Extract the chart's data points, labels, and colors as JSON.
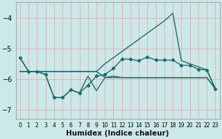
{
  "xlabel": "Humidex (Indice chaleur)",
  "bg_color": "#cce8e8",
  "grid_color": "#e8b0b0",
  "line_color": "#1a6b6b",
  "xlim": [
    -0.5,
    23.5
  ],
  "ylim": [
    -7.3,
    -3.5
  ],
  "yticks": [
    -7,
    -6,
    -5,
    -4
  ],
  "xticks": [
    0,
    1,
    2,
    3,
    4,
    5,
    6,
    7,
    8,
    9,
    10,
    11,
    12,
    13,
    14,
    15,
    16,
    17,
    18,
    19,
    20,
    21,
    22,
    23
  ],
  "line_upper_x": [
    0,
    1,
    2,
    3,
    4,
    5,
    6,
    7,
    8,
    9,
    10,
    11,
    12,
    13,
    14,
    15,
    16,
    17,
    18,
    19,
    20,
    21,
    22,
    23
  ],
  "line_upper_y": [
    -5.3,
    -5.75,
    -5.75,
    -5.75,
    -5.75,
    -5.75,
    -5.75,
    -5.75,
    -5.75,
    -5.75,
    -5.5,
    -5.3,
    -5.1,
    -4.9,
    -4.7,
    -4.5,
    -4.3,
    -4.1,
    -3.85,
    -5.4,
    -5.5,
    -5.6,
    -5.7,
    -6.3
  ],
  "line_mid_x": [
    0,
    1,
    2,
    3,
    4,
    5,
    6,
    7,
    8,
    9,
    10,
    11,
    12,
    13,
    14,
    15,
    16,
    17,
    18,
    19,
    20,
    21,
    22,
    23
  ],
  "line_mid_y": [
    -5.3,
    -5.75,
    -5.75,
    -5.85,
    -6.6,
    -6.6,
    -6.35,
    -6.45,
    -6.2,
    -5.9,
    -5.85,
    -5.65,
    -5.35,
    -5.35,
    -5.4,
    -5.28,
    -5.38,
    -5.38,
    -5.38,
    -5.55,
    -5.55,
    -5.68,
    -5.7,
    -6.32
  ],
  "line_low_x": [
    0,
    1,
    2,
    3,
    4,
    5,
    6,
    7,
    8,
    9,
    10,
    11,
    12,
    13,
    14,
    15,
    16,
    17,
    18,
    19,
    20,
    21,
    22,
    23
  ],
  "line_low_y": [
    -5.75,
    -5.75,
    -5.75,
    -5.85,
    -6.6,
    -6.6,
    -6.35,
    -6.45,
    -5.9,
    -6.38,
    -5.95,
    -5.9,
    -5.95,
    -5.95,
    -5.95,
    -5.95,
    -5.95,
    -5.95,
    -5.95,
    -5.95,
    -5.95,
    -5.95,
    -5.95,
    -6.32
  ],
  "line_flat_x": [
    0,
    1,
    2,
    3,
    4,
    5,
    6,
    7,
    8,
    9,
    10,
    11,
    12,
    13,
    14,
    15,
    16,
    17,
    18,
    19,
    20,
    21,
    22,
    23
  ],
  "line_flat_y": [
    -5.75,
    -5.75,
    -5.75,
    -5.75,
    -5.75,
    -5.75,
    -5.75,
    -5.75,
    -5.75,
    -5.75,
    -5.95,
    -5.95,
    -5.95,
    -5.95,
    -5.95,
    -5.95,
    -5.95,
    -5.95,
    -5.95,
    -5.95,
    -5.95,
    -5.95,
    -5.95,
    -6.32
  ]
}
